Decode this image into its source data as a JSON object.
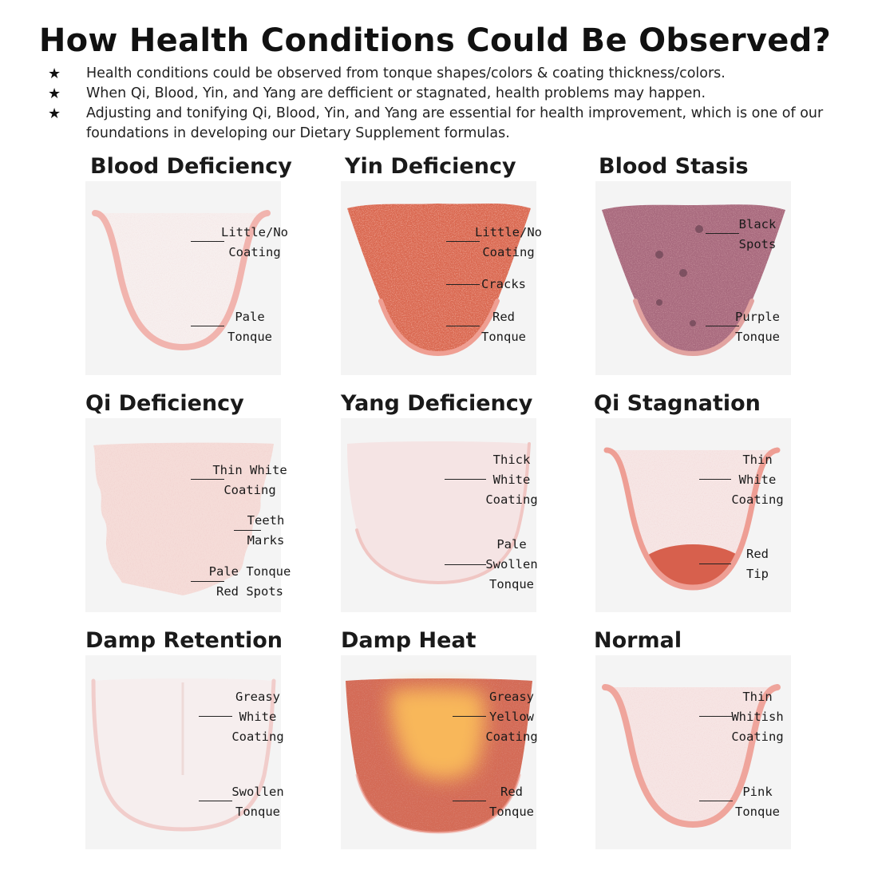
{
  "title": "How Health Conditions Could Be Observed?",
  "bullets": [
    "Health conditions could be observed from tonque shapes/colors & coating thickness/colors.",
    "When Qi, Blood, Yin, and Yang are defficient or stagnated, health problems may happen.",
    "Adjusting and tonifying Qi, Blood, Yin, and Yang are essential for health improvement, which is one of our foundations in developing our Dietary Supplement formulas."
  ],
  "bullet_icon": "star-icon",
  "panels": [
    {
      "title": "Blood Deficiency",
      "colors": {
        "body": "#f7efee",
        "outline": "#f1b4ae"
      },
      "labels": [
        [
          "Little/No",
          "Coating"
        ],
        [
          "Pale",
          "Tonque"
        ]
      ]
    },
    {
      "title": "Yin Deficiency",
      "colors": {
        "body": "#d9674f",
        "outline": "#ef9f93"
      },
      "labels": [
        [
          "Little/No",
          "Coating"
        ],
        [
          "Cracks"
        ],
        [
          "Red",
          "Tonque"
        ]
      ]
    },
    {
      "title": "Blood Stasis",
      "colors": {
        "body": "#a86a7e",
        "outline": "#e2a3a0"
      },
      "labels": [
        [
          "Black",
          "Spots"
        ],
        [
          "Purple",
          "Tonque"
        ]
      ]
    },
    {
      "title": "Qi Deficiency",
      "colors": {
        "body": "#f5dcd8",
        "outline": "#efc3bd"
      },
      "labels": [
        [
          "Thin White",
          "Coating"
        ],
        [
          "Teeth",
          "Marks"
        ],
        [
          "Pale Tonque",
          "Red Spots"
        ]
      ]
    },
    {
      "title": "Yang Deficiency",
      "colors": {
        "body": "#f5e4e4",
        "outline": "#f0c6c3"
      },
      "labels": [
        [
          "Thick",
          "White",
          "Coating"
        ],
        [
          "Pale",
          "Swollen",
          "Tonque"
        ]
      ]
    },
    {
      "title": "Qi Stagnation",
      "colors": {
        "body": "#f6e6e5",
        "outline": "#ee9e94",
        "tip": "#d7604d"
      },
      "labels": [
        [
          "Thin",
          "White",
          "Coating"
        ],
        [
          "Red",
          "Tip"
        ]
      ]
    },
    {
      "title": "Damp Retention",
      "colors": {
        "body": "#f6eeee",
        "outline": "#f1c9c6"
      },
      "labels": [
        [
          "Greasy",
          "White",
          "Coating"
        ],
        [
          "Swollen",
          "Tonque"
        ]
      ]
    },
    {
      "title": "Damp Heat",
      "colors": {
        "body": "#d46a55",
        "outline": "#ef9f93",
        "coating": "#f8b75a"
      },
      "labels": [
        [
          "Greasy",
          "Yellow",
          "Coating"
        ],
        [
          "Red",
          "Tonque"
        ]
      ]
    },
    {
      "title": "Normal",
      "colors": {
        "body": "#f6e5e4",
        "outline": "#efa59c"
      },
      "labels": [
        [
          "Thin",
          "Whitish",
          "Coating"
        ],
        [
          "Pink",
          "Tonque"
        ]
      ]
    }
  ]
}
